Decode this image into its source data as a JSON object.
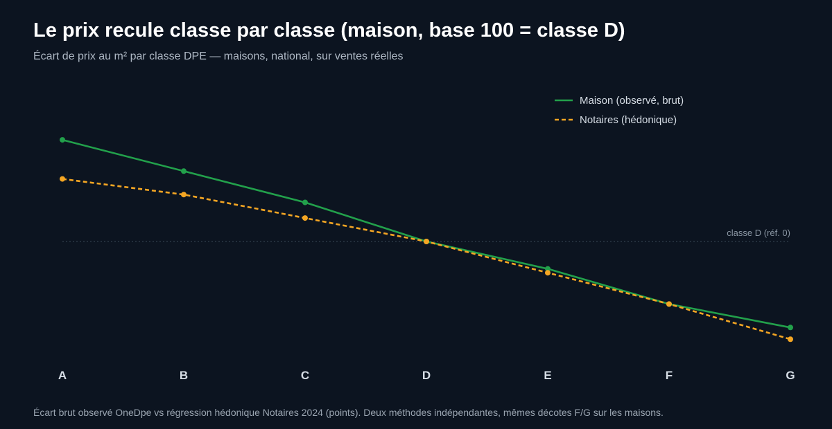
{
  "header": {
    "title": "Le prix recule classe par classe (maison, base 100 = classe D)",
    "subtitle": "Écart de prix au m² par classe DPE — maisons, national, sur ventes réelles"
  },
  "footnote": "Écart brut observé OneDpe vs régression hédonique Notaires 2024 (points). Deux méthodes indépendantes, mêmes décotes F/G sur les maisons.",
  "chart_data": {
    "type": "line",
    "categories": [
      "A",
      "B",
      "C",
      "D",
      "E",
      "F",
      "G"
    ],
    "series": [
      {
        "name": "Maison (observé, brut)",
        "values": [
          13,
          9,
          5,
          0,
          -3.5,
          -8,
          -11
        ],
        "color": "#22a04b",
        "style": "solid"
      },
      {
        "name": "Notaires (hédonique)",
        "values": [
          8,
          6,
          3,
          0,
          -4,
          -8,
          -12.5
        ],
        "color": "#f5a623",
        "style": "dashed"
      }
    ],
    "reference_line": {
      "value": 0,
      "label": "classe D (réf. 0)"
    },
    "ylim": [
      -15,
      17
    ],
    "legend_position": "top-right",
    "grid": false
  }
}
